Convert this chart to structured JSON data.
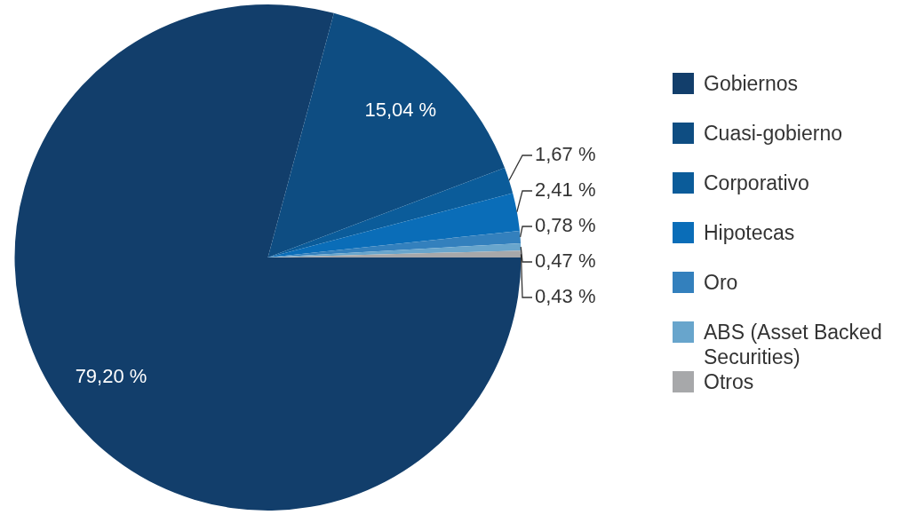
{
  "chart_data": {
    "type": "pie",
    "categories": [
      "Gobiernos",
      "Cuasi-gobierno",
      "Corporativo",
      "Hipotecas",
      "Oro",
      "ABS (Asset Backed Securities)",
      "Otros"
    ],
    "values": [
      79.2,
      15.04,
      1.67,
      2.41,
      0.78,
      0.47,
      0.43
    ],
    "value_labels": [
      "79,20 %",
      "15,04 %",
      "1,67 %",
      "2,41 %",
      "0,78 %",
      "0,47 %",
      "0,43 %"
    ],
    "colors": [
      "#123e6b",
      "#0e4d82",
      "#0b5c9a",
      "#0a6db8",
      "#3380bd",
      "#68a5cc",
      "#a7a8aa"
    ],
    "legend": "right"
  }
}
